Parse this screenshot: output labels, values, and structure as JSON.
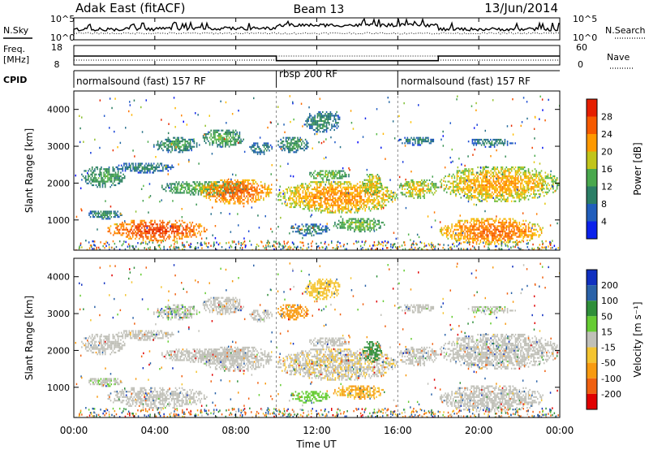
{
  "header": {
    "radar": "Adak East (fitACF)",
    "beam": "Beam 13",
    "date": "13/Jun/2014"
  },
  "top_panels": {
    "nsky": {
      "label": "N.Sky",
      "ytick_low": "10^0",
      "ytick_high": "10^5"
    },
    "nsearch": {
      "label": "N.Search",
      "ytick_low": "10^0",
      "ytick_high": "10^5"
    },
    "freq": {
      "label_line1": "Freq.",
      "label_line2": "[MHz]",
      "ytick_low": "8",
      "ytick_high": "18"
    },
    "nave": {
      "label": "Nave",
      "ytick_low": "0",
      "ytick_high": "60"
    },
    "cpid": {
      "label": "CPID",
      "segments": [
        {
          "label": "normalsound (fast) 157 RF",
          "start_h": 0,
          "end_h": 10
        },
        {
          "label": "rbsp 200 RF",
          "start_h": 10,
          "end_h": 16
        },
        {
          "label": "normalsound (fast) 157 RF",
          "start_h": 16,
          "end_h": 24
        }
      ]
    }
  },
  "power_panel": {
    "ylabel": "Slant Range [km]",
    "colorbar_label": "Power [dB]",
    "colorbar_ticks": [
      "4",
      "8",
      "12",
      "16",
      "20",
      "24",
      "28"
    ]
  },
  "velocity_panel": {
    "ylabel": "Slant Range [km]",
    "colorbar_label": "Velocity [m s⁻¹]",
    "colorbar_ticks": [
      "-200",
      "-100",
      "-50",
      "-15",
      "15",
      "50",
      "100",
      "200"
    ]
  },
  "chart_data": {
    "type": "heatmap",
    "xlabel": "Time UT",
    "x_ticks": [
      "00:00",
      "04:00",
      "08:00",
      "12:00",
      "16:00",
      "20:00",
      "00:00"
    ],
    "xlim_hours": [
      0,
      24
    ],
    "y_ticks": [
      1000,
      2000,
      3000,
      4000
    ],
    "ylim_km": [
      180,
      4500
    ],
    "freq_mhz": [
      {
        "start_h": 0,
        "end_h": 10,
        "value": 12.6
      },
      {
        "start_h": 10,
        "end_h": 18,
        "value": 10.2
      },
      {
        "start_h": 18,
        "end_h": 24,
        "value": 12.6
      }
    ],
    "scatter_regions": [
      {
        "t0": 0.3,
        "t1": 2.5,
        "r0": 1900,
        "r1": 2500,
        "power": 11,
        "velocity": 5
      },
      {
        "t0": 2.0,
        "t1": 5.0,
        "r0": 2300,
        "r1": 2600,
        "power": 8,
        "velocity": 0
      },
      {
        "t0": 4.2,
        "t1": 8.6,
        "r0": 1700,
        "r1": 2100,
        "power": 13,
        "velocity": -5
      },
      {
        "t0": 6.2,
        "t1": 9.8,
        "r0": 1450,
        "r1": 2150,
        "power": 23,
        "velocity": 0
      },
      {
        "t0": 1.6,
        "t1": 6.6,
        "r0": 450,
        "r1": 1050,
        "power": 25,
        "velocity": -5
      },
      {
        "t0": 0.6,
        "t1": 2.4,
        "r0": 1050,
        "r1": 1300,
        "power": 9,
        "velocity": 10
      },
      {
        "t0": 6.3,
        "t1": 8.4,
        "r0": 3000,
        "r1": 3500,
        "power": 12,
        "velocity": 0
      },
      {
        "t0": 3.8,
        "t1": 6.2,
        "r0": 2850,
        "r1": 3300,
        "power": 10,
        "velocity": 8
      },
      {
        "t0": 8.6,
        "t1": 9.8,
        "r0": 2800,
        "r1": 3150,
        "power": 8,
        "velocity": 5
      },
      {
        "t0": 10.0,
        "t1": 16.0,
        "r0": 1200,
        "r1": 2100,
        "power": 20,
        "velocity": -10
      },
      {
        "t0": 10.0,
        "t1": 11.6,
        "r0": 2850,
        "r1": 3300,
        "power": 10,
        "velocity": -80
      },
      {
        "t0": 11.3,
        "t1": 13.2,
        "r0": 3400,
        "r1": 4000,
        "power": 9,
        "velocity": -30
      },
      {
        "t0": 11.5,
        "t1": 13.6,
        "r0": 2100,
        "r1": 2400,
        "power": 14,
        "velocity": 5
      },
      {
        "t0": 12.8,
        "t1": 15.3,
        "r0": 700,
        "r1": 1100,
        "power": 14,
        "velocity": -50
      },
      {
        "t0": 10.6,
        "t1": 12.6,
        "r0": 600,
        "r1": 950,
        "power": 8,
        "velocity": 40
      },
      {
        "t0": 14.2,
        "t1": 15.2,
        "r0": 1700,
        "r1": 2300,
        "power": 17,
        "velocity": 60
      },
      {
        "t0": 16.0,
        "t1": 18.0,
        "r0": 1600,
        "r1": 2150,
        "power": 17,
        "velocity": 0
      },
      {
        "t0": 18.0,
        "t1": 24.0,
        "r0": 1500,
        "r1": 2500,
        "power": 19,
        "velocity": 0
      },
      {
        "t0": 18.0,
        "t1": 23.2,
        "r0": 350,
        "r1": 1100,
        "power": 22,
        "velocity": -5
      },
      {
        "t0": 16.0,
        "t1": 17.8,
        "r0": 3050,
        "r1": 3300,
        "power": 8,
        "velocity": 5
      },
      {
        "t0": 19.4,
        "t1": 21.8,
        "r0": 3000,
        "r1": 3250,
        "power": 8,
        "velocity": 10
      }
    ]
  }
}
